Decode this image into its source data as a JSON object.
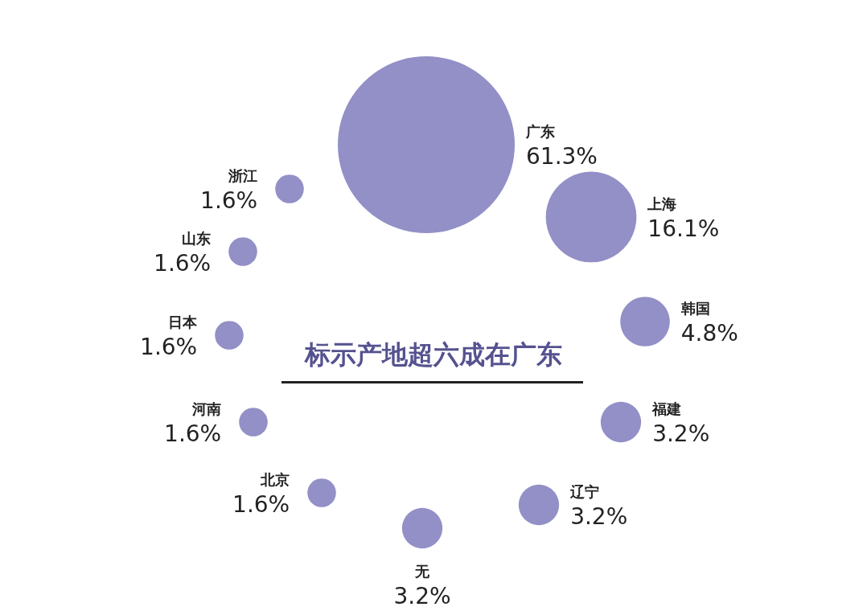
{
  "chart_data": {
    "type": "other",
    "title": "标示产地超六成在广东",
    "categories": [
      "广东",
      "上海",
      "韩国",
      "福建",
      "辽宁",
      "无",
      "北京",
      "河南",
      "日本",
      "山东",
      "浙江"
    ],
    "values": [
      61.3,
      16.1,
      4.8,
      3.2,
      3.2,
      3.2,
      1.6,
      1.6,
      1.6,
      1.6,
      1.6
    ],
    "value_labels": [
      "61.3%",
      "16.1%",
      "4.8%",
      "3.2%",
      "3.2%",
      "3.2%",
      "1.6%",
      "1.6%",
      "1.6%",
      "1.6%",
      "1.6%"
    ],
    "color": "#9290c6"
  }
}
